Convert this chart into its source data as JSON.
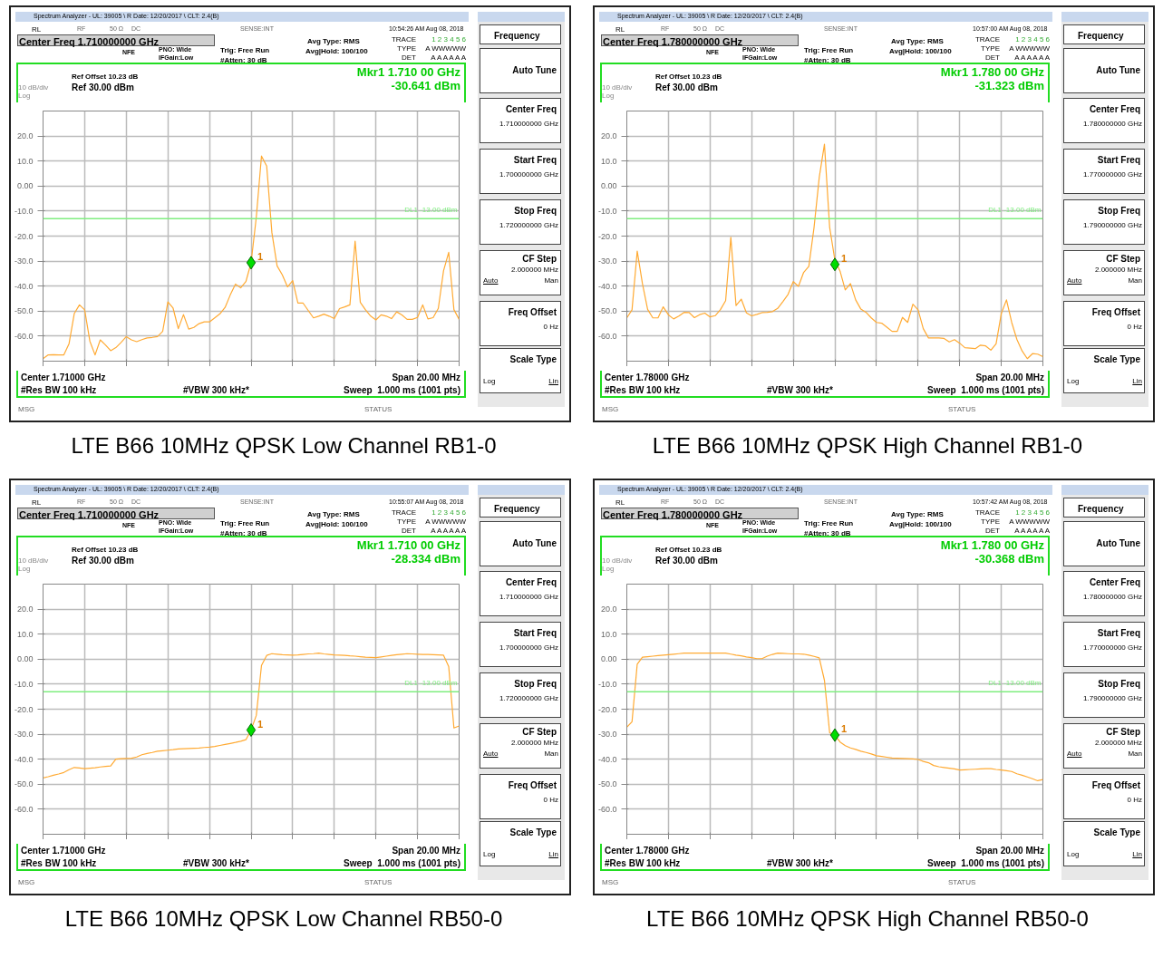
{
  "chart_data": [
    {
      "type": "line",
      "title": "LTE B66 10MHz QPSK Low Channel RB1-0",
      "ylim": [
        -70,
        30
      ],
      "grid": true,
      "tick_labels": "y",
      "categories": [
        null,
        null,
        null,
        null,
        null,
        null,
        null,
        null,
        null,
        null,
        null,
        null,
        null,
        null,
        null,
        null,
        null,
        null,
        null,
        null,
        null,
        null,
        null,
        null,
        null,
        null,
        null,
        null,
        null,
        null,
        null,
        null,
        null,
        null,
        null,
        null,
        null,
        null,
        null,
        null,
        null,
        null,
        null,
        null,
        null,
        null,
        null,
        null,
        null,
        null,
        null,
        null,
        null,
        null,
        null,
        null,
        null,
        null,
        null,
        null,
        null,
        null,
        null,
        null,
        null,
        null,
        null,
        null,
        null,
        null,
        null,
        null,
        null,
        null,
        null,
        null,
        null,
        null,
        null,
        null,
        null
      ],
      "yticks": [
        {
          "value": 20,
          "label": "20.0"
        },
        {
          "value": 10,
          "label": "10.0"
        },
        {
          "value": 0,
          "label": "0.00"
        },
        {
          "value": -10,
          "label": "-10.0"
        },
        {
          "value": -20,
          "label": "-20.0"
        },
        {
          "value": -30,
          "label": "-30.0"
        },
        {
          "value": -40,
          "label": "-40.0"
        },
        {
          "value": -50,
          "label": "-50.0"
        },
        {
          "value": -60,
          "label": "-60.0"
        }
      ],
      "ref_lines": [
        {
          "axis": "y",
          "value": -13,
          "label": "DL1 -13.00 dBm",
          "color": "#80ee80"
        }
      ],
      "series": [
        {
          "color": "#ffaa33",
          "values": [
            -69,
            -67.5,
            -67.4,
            -67.5,
            -67.5,
            -63,
            -51,
            -47.5,
            -49.5,
            -62,
            -67.5,
            -61.5,
            -63.5,
            -65.8,
            -64.6,
            -62.5,
            -60.2,
            -61.5,
            -62.2,
            -61.4,
            -60.7,
            -60.5,
            -60.2,
            -58.1,
            -46.3,
            -48.8,
            -57,
            -51.4,
            -57.2,
            -56.5,
            -55,
            -54.3,
            -54.3,
            -52.7,
            -51.1,
            -48.5,
            -43.5,
            -39.2,
            -40.7,
            -38.2,
            -30.6,
            -12.5,
            12,
            8,
            -18.6,
            -31.9,
            -35.5,
            -40.3,
            -37.8,
            -46.8,
            -46.8,
            -49.8,
            -52.7,
            -52,
            -51.2,
            -52,
            -53,
            -49,
            -48.3,
            -47.5,
            -22,
            -46.5,
            -49.5,
            -52,
            -53.5,
            -51.5,
            -52,
            -53,
            -50.3,
            -51.5,
            -53.3,
            -53.3,
            -52.5,
            -47.5,
            -53.1,
            -52.6,
            -48.9,
            -33.9,
            -26.5,
            -49.4,
            -53.3
          ]
        },
        {
          "type": "scatter",
          "marker": "diamond",
          "color": "#00dd00",
          "values": [
            null,
            null,
            null,
            null,
            null,
            null,
            null,
            null,
            null,
            null,
            null,
            null,
            null,
            null,
            null,
            null,
            null,
            null,
            null,
            null,
            null,
            null,
            null,
            null,
            null,
            null,
            null,
            null,
            null,
            null,
            null,
            null,
            null,
            null,
            null,
            null,
            null,
            null,
            null,
            null,
            -30.641,
            null,
            null,
            null,
            null,
            null,
            null,
            null,
            null,
            null,
            null,
            null,
            null,
            null,
            null,
            null,
            null,
            null,
            null,
            null,
            null,
            null,
            null,
            null,
            null,
            null,
            null,
            null,
            null,
            null,
            null,
            null,
            null,
            null,
            null,
            null,
            null,
            null,
            null,
            null,
            null
          ]
        }
      ],
      "annotations": [
        "Spectrum Analyzer - UL: 39005 \\ R Date: 12/20/2017 \\ CLT: 2.4(B)",
        "RL",
        "RF",
        "50 Ω",
        "DC",
        "SENSE:INT",
        "10:54:26 AM Aug 08, 2018",
        "Center Freq 1.710000000 GHz",
        "NFE",
        "PNO: Wide",
        "IFGain:Low",
        "Trig: Free Run",
        "#Atten: 30 dB",
        "Avg Type: RMS",
        "Avg|Hold: 100/100",
        "TRACE",
        "1 2 3 4 5 6",
        "TYPE",
        "A WWWWW",
        "DET",
        "A A A A A A",
        "Ref Offset 10.23 dB",
        "Ref 30.00 dBm",
        "10 dB/div",
        "Log",
        "Mkr1 1.710 00 GHz",
        "-30.641 dBm",
        "Center 1.71000 GHz",
        "Span 20.00 MHz",
        "#Res BW 100 kHz",
        "#VBW 300 kHz*",
        "Sweep  1.000 ms (1001 pts)",
        "MSG",
        "STATUS",
        "Frequency",
        "Auto Tune",
        "Center Freq",
        "1.710000000 GHz",
        "Start Freq",
        "1.700000000 GHz",
        "Stop Freq",
        "1.720000000 GHz",
        "CF Step",
        "2.000000 MHz",
        "Auto",
        "Man",
        "Freq Offset",
        "0 Hz",
        "Scale Type",
        "Log",
        "Lin",
        "1"
      ]
    },
    {
      "type": "line",
      "title": "LTE B66 10MHz QPSK High Channel RB1-0",
      "ylim": [
        -70,
        30
      ],
      "grid": true,
      "tick_labels": "y",
      "categories": [
        null,
        null,
        null,
        null,
        null,
        null,
        null,
        null,
        null,
        null,
        null,
        null,
        null,
        null,
        null,
        null,
        null,
        null,
        null,
        null,
        null,
        null,
        null,
        null,
        null,
        null,
        null,
        null,
        null,
        null,
        null,
        null,
        null,
        null,
        null,
        null,
        null,
        null,
        null,
        null,
        null,
        null,
        null,
        null,
        null,
        null,
        null,
        null,
        null,
        null,
        null,
        null,
        null,
        null,
        null,
        null,
        null,
        null,
        null,
        null,
        null,
        null,
        null,
        null,
        null,
        null,
        null,
        null,
        null,
        null,
        null,
        null,
        null,
        null,
        null,
        null,
        null,
        null,
        null,
        null,
        null
      ],
      "yticks": [
        {
          "value": 20,
          "label": "20.0"
        },
        {
          "value": 10,
          "label": "10.0"
        },
        {
          "value": 0,
          "label": "0.00"
        },
        {
          "value": -10,
          "label": "-10.0"
        },
        {
          "value": -20,
          "label": "-20.0"
        },
        {
          "value": -30,
          "label": "-30.0"
        },
        {
          "value": -40,
          "label": "-40.0"
        },
        {
          "value": -50,
          "label": "-50.0"
        },
        {
          "value": -60,
          "label": "-60.0"
        }
      ],
      "ref_lines": [
        {
          "axis": "y",
          "value": -13,
          "label": "DL1 -13.00 dBm",
          "color": "#80ee80"
        }
      ],
      "series": [
        {
          "color": "#ffaa33",
          "values": [
            -52.7,
            -49.5,
            -26,
            -39,
            -49.3,
            -52.7,
            -52.7,
            -48.3,
            -51.5,
            -53.1,
            -52,
            -50.5,
            -50.6,
            -52.6,
            -51.4,
            -50.8,
            -52.3,
            -51.8,
            -49.4,
            -45.8,
            -20.5,
            -47.8,
            -45.2,
            -50.7,
            -51.9,
            -51.3,
            -50.6,
            -50.5,
            -50.2,
            -48.9,
            -46.2,
            -43.3,
            -38.2,
            -40.1,
            -34.5,
            -32.1,
            -16.5,
            3.5,
            16.7,
            -16.5,
            -29.5,
            -34,
            -41.5,
            -39,
            -45.5,
            -49.2,
            -50.5,
            -52.7,
            -54.5,
            -54.8,
            -56.4,
            -58.1,
            -58.1,
            -52.5,
            -54.5,
            -47.2,
            -49.5,
            -57,
            -60.7,
            -60.7,
            -60.7,
            -60.9,
            -62.3,
            -61.4,
            -62.8,
            -64.6,
            -64.8,
            -65,
            -63.6,
            -63.9,
            -65.6,
            -63.1,
            -51,
            -45.5,
            -54.5,
            -61.3,
            -65.9,
            -69,
            -67,
            -67.2,
            -68.2
          ]
        },
        {
          "type": "scatter",
          "marker": "diamond",
          "color": "#00dd00",
          "values": [
            null,
            null,
            null,
            null,
            null,
            null,
            null,
            null,
            null,
            null,
            null,
            null,
            null,
            null,
            null,
            null,
            null,
            null,
            null,
            null,
            null,
            null,
            null,
            null,
            null,
            null,
            null,
            null,
            null,
            null,
            null,
            null,
            null,
            null,
            null,
            null,
            null,
            null,
            null,
            null,
            -31.323,
            null,
            null,
            null,
            null,
            null,
            null,
            null,
            null,
            null,
            null,
            null,
            null,
            null,
            null,
            null,
            null,
            null,
            null,
            null,
            null,
            null,
            null,
            null,
            null,
            null,
            null,
            null,
            null,
            null,
            null,
            null,
            null,
            null,
            null,
            null,
            null,
            null,
            null,
            null,
            null
          ]
        }
      ],
      "annotations": [
        "Spectrum Analyzer - UL: 39005 \\ R Date: 12/20/2017 \\ CLT: 2.4(B)",
        "RL",
        "RF",
        "50 Ω",
        "DC",
        "SENSE:INT",
        "10:57:00 AM Aug 08, 2018",
        "Center Freq 1.780000000 GHz",
        "NFE",
        "PNO: Wide",
        "IFGain:Low",
        "Trig: Free Run",
        "#Atten: 30 dB",
        "Avg Type: RMS",
        "Avg|Hold: 100/100",
        "TRACE",
        "1 2 3 4 5 6",
        "TYPE",
        "A WWWWW",
        "DET",
        "A A A A A A",
        "Ref Offset 10.23 dB",
        "Ref 30.00 dBm",
        "10 dB/div",
        "Log",
        "Mkr1 1.780 00 GHz",
        "-31.323 dBm",
        "Center 1.78000 GHz",
        "Span 20.00 MHz",
        "#Res BW 100 kHz",
        "#VBW 300 kHz*",
        "Sweep  1.000 ms (1001 pts)",
        "MSG",
        "STATUS",
        "Frequency",
        "Auto Tune",
        "Center Freq",
        "1.780000000 GHz",
        "Start Freq",
        "1.770000000 GHz",
        "Stop Freq",
        "1.790000000 GHz",
        "CF Step",
        "2.000000 MHz",
        "Auto",
        "Man",
        "Freq Offset",
        "0 Hz",
        "Scale Type",
        "Log",
        "Lin",
        "1"
      ]
    },
    {
      "type": "line",
      "title": "LTE B66 10MHz QPSK Low Channel RB50-0",
      "ylim": [
        -70,
        30
      ],
      "grid": true,
      "tick_labels": "y",
      "categories": [
        null,
        null,
        null,
        null,
        null,
        null,
        null,
        null,
        null,
        null,
        null,
        null,
        null,
        null,
        null,
        null,
        null,
        null,
        null,
        null,
        null,
        null,
        null,
        null,
        null,
        null,
        null,
        null,
        null,
        null,
        null,
        null,
        null,
        null,
        null,
        null,
        null,
        null,
        null,
        null,
        null,
        null,
        null,
        null,
        null,
        null,
        null,
        null,
        null,
        null,
        null,
        null,
        null,
        null,
        null,
        null,
        null,
        null,
        null,
        null,
        null,
        null,
        null,
        null,
        null,
        null,
        null,
        null,
        null,
        null,
        null,
        null,
        null,
        null,
        null,
        null,
        null,
        null,
        null,
        null,
        null
      ],
      "yticks": [
        {
          "value": 20,
          "label": "20.0"
        },
        {
          "value": 10,
          "label": "10.0"
        },
        {
          "value": 0,
          "label": "0.00"
        },
        {
          "value": -10,
          "label": "-10.0"
        },
        {
          "value": -20,
          "label": "-20.0"
        },
        {
          "value": -30,
          "label": "-30.0"
        },
        {
          "value": -40,
          "label": "-40.0"
        },
        {
          "value": -50,
          "label": "-50.0"
        },
        {
          "value": -60,
          "label": "-60.0"
        }
      ],
      "ref_lines": [
        {
          "axis": "y",
          "value": -13,
          "label": "DL1 -13.00 dBm",
          "color": "#80ee80"
        }
      ],
      "series": [
        {
          "color": "#ffaa33",
          "values": [
            -47.5,
            -47,
            -46.4,
            -45.9,
            -45.3,
            -44.2,
            -43.3,
            -43.5,
            -43.8,
            -43.6,
            -43.4,
            -43.1,
            -42.9,
            -42.7,
            -40,
            -39.8,
            -39.7,
            -39.6,
            -39.1,
            -38.2,
            -37.7,
            -37.3,
            -36.8,
            -36.6,
            -36.4,
            -36.2,
            -35.9,
            -35.8,
            -35.7,
            -35.6,
            -35.5,
            -35.3,
            -35.2,
            -34.9,
            -34.5,
            -34.1,
            -33.7,
            -33.3,
            -32.8,
            -32.2,
            -28.3,
            -22.5,
            -2.5,
            1.5,
            2.2,
            2,
            1.8,
            1.7,
            1.6,
            1.7,
            1.9,
            2.1,
            2.2,
            2.4,
            2.1,
            1.9,
            1.7,
            1.6,
            1.5,
            1.3,
            1.2,
            1,
            0.8,
            0.7,
            0.6,
            0.9,
            1.2,
            1.5,
            1.8,
            2,
            2.2,
            2.1,
            2,
            1.9,
            1.9,
            1.8,
            1.7,
            1.6,
            -3,
            -27.5,
            -26.7
          ]
        },
        {
          "type": "scatter",
          "marker": "diamond",
          "color": "#00dd00",
          "values": [
            null,
            null,
            null,
            null,
            null,
            null,
            null,
            null,
            null,
            null,
            null,
            null,
            null,
            null,
            null,
            null,
            null,
            null,
            null,
            null,
            null,
            null,
            null,
            null,
            null,
            null,
            null,
            null,
            null,
            null,
            null,
            null,
            null,
            null,
            null,
            null,
            null,
            null,
            null,
            null,
            -28.334,
            null,
            null,
            null,
            null,
            null,
            null,
            null,
            null,
            null,
            null,
            null,
            null,
            null,
            null,
            null,
            null,
            null,
            null,
            null,
            null,
            null,
            null,
            null,
            null,
            null,
            null,
            null,
            null,
            null,
            null,
            null,
            null,
            null,
            null,
            null,
            null,
            null,
            null,
            null,
            null
          ]
        }
      ],
      "annotations": [
        "Spectrum Analyzer - UL: 39005 \\ R Date: 12/20/2017 \\ CLT: 2.4(B)",
        "RL",
        "RF",
        "50 Ω",
        "DC",
        "SENSE:INT",
        "10:55:07 AM Aug 08, 2018",
        "Center Freq 1.710000000 GHz",
        "NFE",
        "PNO: Wide",
        "IFGain:Low",
        "Trig: Free Run",
        "#Atten: 30 dB",
        "Avg Type: RMS",
        "Avg|Hold: 100/100",
        "TRACE",
        "1 2 3 4 5 6",
        "TYPE",
        "A WWWWW",
        "DET",
        "A A A A A A",
        "Ref Offset 10.23 dB",
        "Ref 30.00 dBm",
        "10 dB/div",
        "Log",
        "Mkr1 1.710 00 GHz",
        "-28.334 dBm",
        "Center 1.71000 GHz",
        "Span 20.00 MHz",
        "#Res BW 100 kHz",
        "#VBW 300 kHz*",
        "Sweep  1.000 ms (1001 pts)",
        "MSG",
        "STATUS",
        "Frequency",
        "Auto Tune",
        "Center Freq",
        "1.710000000 GHz",
        "Start Freq",
        "1.700000000 GHz",
        "Stop Freq",
        "1.720000000 GHz",
        "CF Step",
        "2.000000 MHz",
        "Auto",
        "Man",
        "Freq Offset",
        "0 Hz",
        "Scale Type",
        "Log",
        "Lin",
        "1"
      ]
    },
    {
      "type": "line",
      "title": "LTE B66 10MHz QPSK High Channel RB50-0",
      "ylim": [
        -70,
        30
      ],
      "grid": true,
      "tick_labels": "y",
      "categories": [
        null,
        null,
        null,
        null,
        null,
        null,
        null,
        null,
        null,
        null,
        null,
        null,
        null,
        null,
        null,
        null,
        null,
        null,
        null,
        null,
        null,
        null,
        null,
        null,
        null,
        null,
        null,
        null,
        null,
        null,
        null,
        null,
        null,
        null,
        null,
        null,
        null,
        null,
        null,
        null,
        null,
        null,
        null,
        null,
        null,
        null,
        null,
        null,
        null,
        null,
        null,
        null,
        null,
        null,
        null,
        null,
        null,
        null,
        null,
        null,
        null,
        null,
        null,
        null,
        null,
        null,
        null,
        null,
        null,
        null,
        null,
        null,
        null,
        null,
        null,
        null,
        null,
        null,
        null,
        null,
        null
      ],
      "yticks": [
        {
          "value": 20,
          "label": "20.0"
        },
        {
          "value": 10,
          "label": "10.0"
        },
        {
          "value": 0,
          "label": "0.00"
        },
        {
          "value": -10,
          "label": "-10.0"
        },
        {
          "value": -20,
          "label": "-20.0"
        },
        {
          "value": -30,
          "label": "-30.0"
        },
        {
          "value": -40,
          "label": "-40.0"
        },
        {
          "value": -50,
          "label": "-50.0"
        },
        {
          "value": -60,
          "label": "-60.0"
        }
      ],
      "ref_lines": [
        {
          "axis": "y",
          "value": -13,
          "label": "DL1 -13.00 dBm",
          "color": "#80ee80"
        }
      ],
      "series": [
        {
          "color": "#ffaa33",
          "values": [
            -27.2,
            -25,
            -2,
            0.8,
            1,
            1.2,
            1.4,
            1.6,
            1.8,
            2,
            2.2,
            2.4,
            2.4,
            2.4,
            2.4,
            2.4,
            2.4,
            2.4,
            2.4,
            2.4,
            2,
            1.6,
            1.3,
            0.9,
            0.6,
            0.2,
            0.2,
            1.2,
            1.9,
            2.4,
            2.3,
            2.2,
            2.1,
            2.1,
            2,
            1.6,
            1.1,
            0.5,
            -8.5,
            -29.4,
            -30.4,
            -33.1,
            -34.6,
            -35.5,
            -36.1,
            -36.8,
            -37.3,
            -37.9,
            -38.6,
            -38.9,
            -39.2,
            -39.5,
            -39.6,
            -39.7,
            -39.8,
            -39.9,
            -40.1,
            -40.9,
            -41.4,
            -42.5,
            -43,
            -43.3,
            -43.6,
            -43.9,
            -44.3,
            -44.2,
            -44.1,
            -44,
            -43.9,
            -43.8,
            -43.8,
            -44.1,
            -44.3,
            -44.6,
            -44.9,
            -45.8,
            -46.4,
            -47.1,
            -47.8,
            -48.6,
            -48.1
          ]
        },
        {
          "type": "scatter",
          "marker": "diamond",
          "color": "#00dd00",
          "values": [
            null,
            null,
            null,
            null,
            null,
            null,
            null,
            null,
            null,
            null,
            null,
            null,
            null,
            null,
            null,
            null,
            null,
            null,
            null,
            null,
            null,
            null,
            null,
            null,
            null,
            null,
            null,
            null,
            null,
            null,
            null,
            null,
            null,
            null,
            null,
            null,
            null,
            null,
            null,
            null,
            -30.368,
            null,
            null,
            null,
            null,
            null,
            null,
            null,
            null,
            null,
            null,
            null,
            null,
            null,
            null,
            null,
            null,
            null,
            null,
            null,
            null,
            null,
            null,
            null,
            null,
            null,
            null,
            null,
            null,
            null,
            null,
            null,
            null,
            null,
            null,
            null,
            null,
            null,
            null,
            null,
            null
          ]
        }
      ],
      "annotations": [
        "Spectrum Analyzer - UL: 39005 \\ R Date: 12/20/2017 \\ CLT: 2.4(B)",
        "RL",
        "RF",
        "50 Ω",
        "DC",
        "SENSE:INT",
        "10:57:42 AM Aug 08, 2018",
        "Center Freq 1.780000000 GHz",
        "NFE",
        "PNO: Wide",
        "IFGain:Low",
        "Trig: Free Run",
        "#Atten: 30 dB",
        "Avg Type: RMS",
        "Avg|Hold: 100/100",
        "TRACE",
        "1 2 3 4 5 6",
        "TYPE",
        "A WWWWW",
        "DET",
        "A A A A A A",
        "Ref Offset 10.23 dB",
        "Ref 30.00 dBm",
        "10 dB/div",
        "Log",
        "Mkr1 1.780 00 GHz",
        "-30.368 dBm",
        "Center 1.78000 GHz",
        "Span 20.00 MHz",
        "#Res BW 100 kHz",
        "#VBW 300 kHz*",
        "Sweep  1.000 ms (1001 pts)",
        "MSG",
        "STATUS",
        "Frequency",
        "Auto Tune",
        "Center Freq",
        "1.780000000 GHz",
        "Start Freq",
        "1.770000000 GHz",
        "Stop Freq",
        "1.790000000 GHz",
        "CF Step",
        "2.000000 MHz",
        "Auto",
        "Man",
        "Freq Offset",
        "0 Hz",
        "Scale Type",
        "Log",
        "Lin",
        "1"
      ]
    }
  ]
}
